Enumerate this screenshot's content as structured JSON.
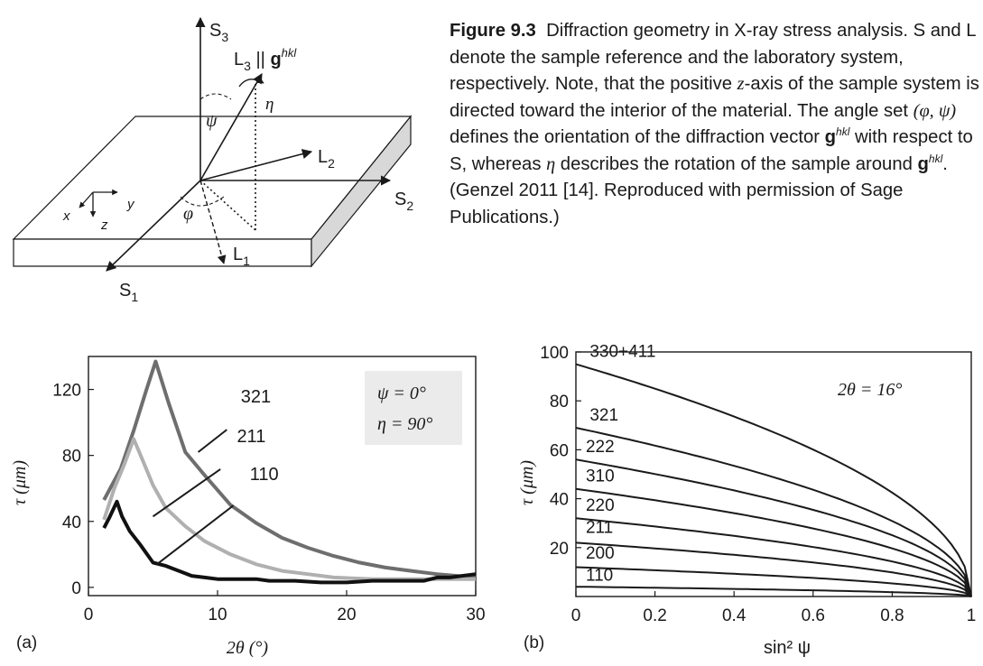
{
  "figure": {
    "caption_label": "Figure 9.3",
    "caption_text_1": "Diffraction geometry in X-ray stress analysis. S and L denote the sample reference and the laboratory system, respectively. Note, that the positive ",
    "caption_z": "z",
    "caption_text_2": "-axis of the sample system is directed toward the interior of the material. The angle set ",
    "caption_angles": "(φ, ψ)",
    "caption_text_3": " defines the orientation of the diffraction vector ",
    "caption_g": "g",
    "caption_hkl": "hkl",
    "caption_text_4": " with respect to S, whereas ",
    "caption_eta": "η",
    "caption_text_5": " describes the rotation of the sample around ",
    "caption_text_6": ". (Genzel 2011 [14]. Reproduced with permission of Sage Publications.)"
  },
  "geometry": {
    "S3": "S",
    "S3_sub": "3",
    "S2": "S",
    "S2_sub": "2",
    "S1": "S",
    "S1_sub": "1",
    "L3": "L",
    "L3_sub": "3",
    "L3_par": " || ",
    "L3_g": "g",
    "L3_hkl": "hkl",
    "L2": "L",
    "L2_sub": "2",
    "L1": "L",
    "L1_sub": "1",
    "psi": "ψ",
    "phi": "φ",
    "eta": "η",
    "x": "x",
    "y": "y",
    "z": "z"
  },
  "chart_data": [
    {
      "panel": "(a)",
      "type": "line",
      "xlabel": "2θ (°)",
      "ylabel": "τ (μm)",
      "xlim": [
        0,
        30
      ],
      "ylim": [
        -5,
        140
      ],
      "xticks": [
        "0",
        "10",
        "20",
        "30"
      ],
      "yticks": [
        "0",
        "40",
        "80",
        "120"
      ],
      "legend_box": [
        "ψ = 0°",
        "η = 90°"
      ],
      "series": [
        {
          "name": "321",
          "color": "#6e6e6e",
          "x": [
            1.2,
            2.5,
            3.5,
            4.5,
            5.2,
            6.2,
            7.5,
            9,
            11,
            13,
            15,
            17,
            19,
            21,
            23,
            25,
            27,
            30
          ],
          "y": [
            53,
            72,
            95,
            120,
            137,
            112,
            82,
            68,
            50,
            39,
            30,
            24,
            19,
            15,
            12,
            10,
            8,
            6
          ]
        },
        {
          "name": "211",
          "color": "#b0b0b0",
          "x": [
            1.2,
            2,
            2.8,
            3.5,
            4.2,
            5,
            6,
            7.5,
            9,
            11,
            13,
            15,
            17,
            19,
            22,
            25,
            28,
            30
          ],
          "y": [
            41,
            60,
            75,
            90,
            77,
            62,
            48,
            37,
            28,
            20,
            14,
            10,
            8,
            6,
            5,
            5,
            5,
            5
          ]
        },
        {
          "name": "110",
          "color": "#111111",
          "x": [
            1.2,
            1.6,
            2.2,
            2.6,
            3.2,
            4,
            5,
            6,
            7,
            8,
            9,
            10,
            11,
            12,
            13,
            14,
            15,
            16,
            18,
            20,
            22,
            24,
            26,
            27,
            28,
            30
          ],
          "y": [
            36,
            42,
            52,
            43,
            34,
            26,
            15,
            13,
            10,
            7,
            6,
            5,
            5,
            5,
            5,
            4,
            4,
            4,
            3,
            3,
            4,
            4,
            4,
            6,
            6,
            8
          ]
        }
      ],
      "labels": [
        "321",
        "211",
        "110"
      ]
    },
    {
      "panel": "(b)",
      "type": "line",
      "xlabel": "sin² ψ",
      "ylabel": "τ (μm)",
      "xlim": [
        0,
        1
      ],
      "ylim": [
        0,
        100
      ],
      "xticks": [
        "0",
        "0.2",
        "0.4",
        "0.6",
        "0.8",
        "1"
      ],
      "yticks": [
        "20",
        "40",
        "60",
        "80",
        "100"
      ],
      "annotation": "2θ = 16°",
      "series": [
        {
          "name": "330+411",
          "y0": 95
        },
        {
          "name": "321",
          "y0": 69
        },
        {
          "name": "222",
          "y0": 56
        },
        {
          "name": "310",
          "y0": 44
        },
        {
          "name": "220",
          "y0": 32
        },
        {
          "name": "211",
          "y0": 22
        },
        {
          "name": "200",
          "y0": 12
        },
        {
          "name": "110",
          "y0": 4
        }
      ]
    }
  ],
  "panels": {
    "a": "(a)",
    "b": "(b)"
  }
}
